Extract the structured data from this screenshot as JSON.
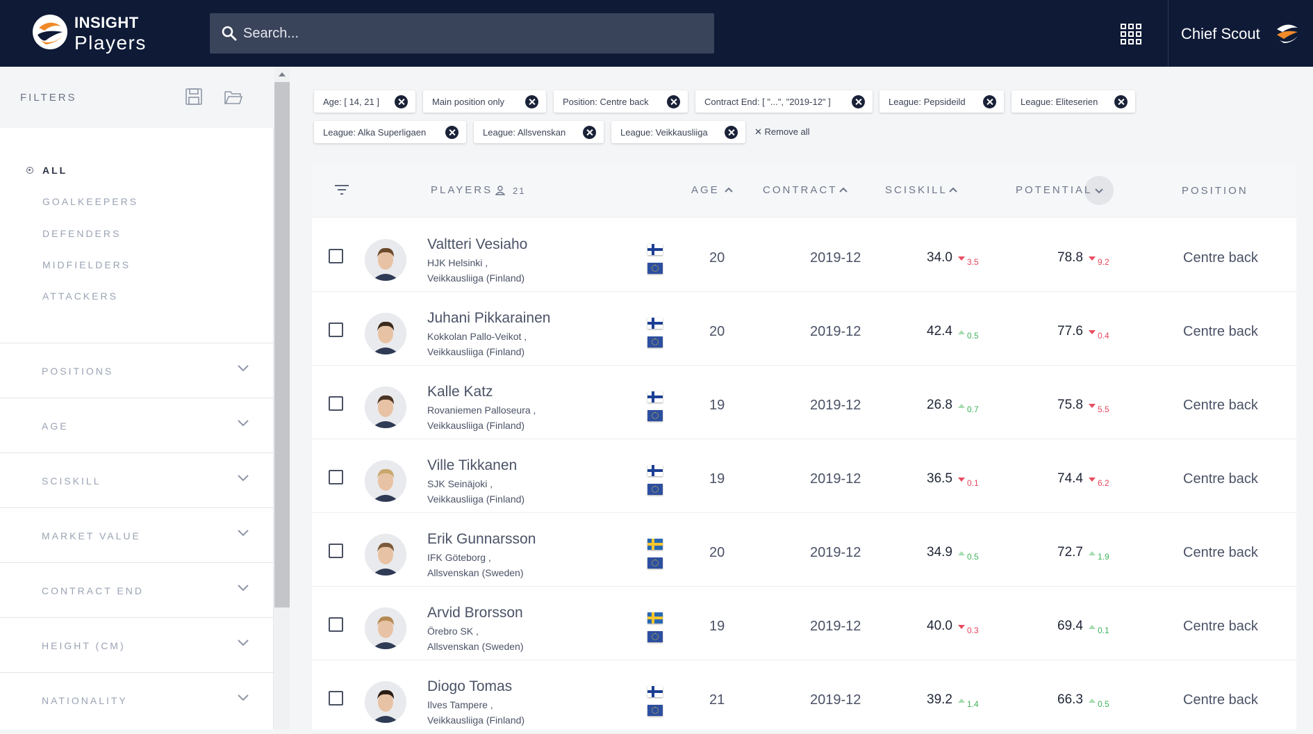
{
  "app": {
    "brand_top": "INSIGHT",
    "brand_bottom": "Players",
    "user_label": "Chief Scout"
  },
  "search": {
    "placeholder": "Search..."
  },
  "sidebar": {
    "title": "FILTERS",
    "categories": [
      "ALL",
      "GOALKEEPERS",
      "DEFENDERS",
      "MIDFIELDERS",
      "ATTACKERS"
    ],
    "selected_category": "ALL",
    "sections": [
      "POSITIONS",
      "AGE",
      "SCISKILL",
      "MARKET VALUE",
      "CONTRACT END",
      "HEIGHT (CM)",
      "NATIONALITY"
    ]
  },
  "chips": [
    "Age: [ 14, 21 ]",
    "Main position only",
    "Position: Centre back",
    "Contract End: [ \"...\", \"2019-12\" ]",
    "League: Pepsideild",
    "League: Eliteserien",
    "League: Alka Superligaen",
    "League: Allsvenskan",
    "League: Veikkausliiga"
  ],
  "remove_all": "Remove all",
  "table": {
    "headers": {
      "players": "PLAYERS",
      "age": "AGE",
      "contract": "CONTRACT",
      "sciskill": "SCISKILL",
      "potential": "POTENTIAL",
      "position": "POSITION"
    },
    "player_count": "21",
    "rows": [
      {
        "name": "Valtteri Vesiaho",
        "club": "HJK Helsinki ,",
        "league": "Veikkausliiga (Finland)",
        "flag": "fi",
        "age": "20",
        "contract": "2019-12",
        "sciskill": "34.0",
        "sciskill_delta": "3.5",
        "sciskill_dir": "down",
        "potential": "78.8",
        "potential_delta": "9.2",
        "potential_dir": "down",
        "position": "Centre back"
      },
      {
        "name": "Juhani Pikkarainen",
        "club": "Kokkolan Pallo-Veikot ,",
        "league": "Veikkausliiga (Finland)",
        "flag": "fi",
        "age": "20",
        "contract": "2019-12",
        "sciskill": "42.4",
        "sciskill_delta": "0.5",
        "sciskill_dir": "up",
        "potential": "77.6",
        "potential_delta": "0.4",
        "potential_dir": "down",
        "position": "Centre back"
      },
      {
        "name": "Kalle Katz",
        "club": "Rovaniemen Palloseura ,",
        "league": "Veikkausliiga (Finland)",
        "flag": "fi",
        "age": "19",
        "contract": "2019-12",
        "sciskill": "26.8",
        "sciskill_delta": "0.7",
        "sciskill_dir": "up",
        "potential": "75.8",
        "potential_delta": "5.5",
        "potential_dir": "down",
        "position": "Centre back"
      },
      {
        "name": "Ville Tikkanen",
        "club": "SJK Seinäjoki ,",
        "league": "Veikkausliiga (Finland)",
        "flag": "fi",
        "age": "19",
        "contract": "2019-12",
        "sciskill": "36.5",
        "sciskill_delta": "0.1",
        "sciskill_dir": "down",
        "potential": "74.4",
        "potential_delta": "6.2",
        "potential_dir": "down",
        "position": "Centre back"
      },
      {
        "name": "Erik Gunnarsson",
        "club": "IFK Göteborg ,",
        "league": "Allsvenskan (Sweden)",
        "flag": "se",
        "age": "20",
        "contract": "2019-12",
        "sciskill": "34.9",
        "sciskill_delta": "0.5",
        "sciskill_dir": "up",
        "potential": "72.7",
        "potential_delta": "1.9",
        "potential_dir": "up",
        "position": "Centre back"
      },
      {
        "name": "Arvid Brorsson",
        "club": "Örebro SK ,",
        "league": "Allsvenskan (Sweden)",
        "flag": "se",
        "age": "19",
        "contract": "2019-12",
        "sciskill": "40.0",
        "sciskill_delta": "0.3",
        "sciskill_dir": "down",
        "potential": "69.4",
        "potential_delta": "0.1",
        "potential_dir": "up",
        "position": "Centre back"
      },
      {
        "name": "Diogo Tomas",
        "club": "Ilves Tampere ,",
        "league": "Veikkausliiga (Finland)",
        "flag": "fi",
        "age": "21",
        "contract": "2019-12",
        "sciskill": "39.2",
        "sciskill_delta": "1.4",
        "sciskill_dir": "up",
        "potential": "66.3",
        "potential_delta": "0.5",
        "potential_dir": "up",
        "position": "Centre back"
      }
    ]
  },
  "colors": {
    "topbar": "#0e1a36",
    "logo_orange": "#f08a28",
    "delta_down": "#e2455a",
    "delta_up": "#3eb25a"
  }
}
